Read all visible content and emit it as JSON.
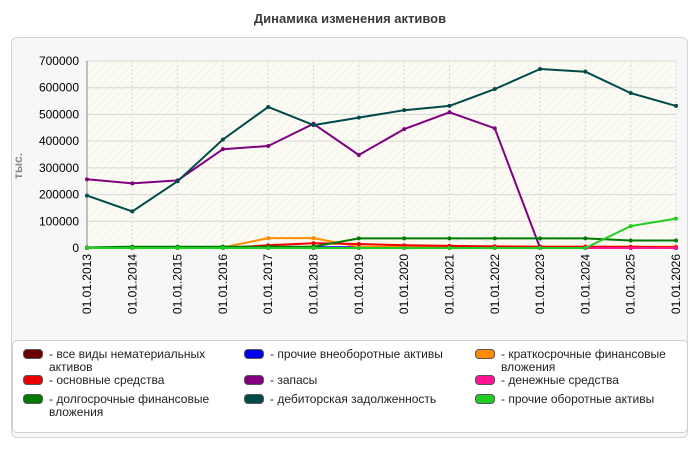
{
  "chart_data": {
    "type": "line",
    "title": "Динамика изменения активов",
    "ylabel": "тыс.",
    "xlabel": "",
    "ylim": [
      0,
      700000
    ],
    "yticks": [
      "0",
      "100000",
      "200000",
      "300000",
      "400000",
      "500000",
      "600000",
      "700000"
    ],
    "categories": [
      "01.01.2013",
      "01.01.2014",
      "01.01.2015",
      "01.01.2016",
      "01.01.2017",
      "01.01.2018",
      "01.01.2019",
      "01.01.2020",
      "01.01.2021",
      "01.01.2022",
      "01.01.2023",
      "01.01.2024",
      "01.01.2025",
      "01.01.2026"
    ],
    "grid": true,
    "legend_position": "bottom",
    "series": [
      {
        "name": "- все виды нематериальных активов",
        "color": "#6b0000",
        "values": [
          0,
          0,
          0,
          0,
          0,
          0,
          0,
          0,
          0,
          0,
          0,
          0,
          0,
          0
        ]
      },
      {
        "name": "- прочие внеоборотные активы",
        "color": "#0000ee",
        "values": [
          0,
          2000,
          3000,
          3000,
          3000,
          3000,
          3000,
          2000,
          2000,
          1000,
          0,
          0,
          0,
          0
        ]
      },
      {
        "name": "- краткосрочные финансовые вложения",
        "color": "#ff8c00",
        "values": [
          0,
          0,
          0,
          2000,
          37000,
          37000,
          5000,
          5000,
          5000,
          5000,
          5000,
          5000,
          5000,
          5000
        ]
      },
      {
        "name": "- основные средства",
        "color": "#ee0000",
        "values": [
          0,
          0,
          0,
          0,
          10000,
          18000,
          15000,
          10000,
          8000,
          6000,
          5000,
          5000,
          4000,
          3000
        ]
      },
      {
        "name": "- запасы",
        "color": "#800080",
        "values": [
          257000,
          242000,
          253000,
          370000,
          382000,
          465000,
          348000,
          445000,
          508000,
          448000,
          0,
          0,
          0,
          0
        ]
      },
      {
        "name": "- денежные средства",
        "color": "#ff1493",
        "values": [
          0,
          0,
          0,
          0,
          0,
          0,
          0,
          0,
          0,
          0,
          0,
          0,
          0,
          0
        ]
      },
      {
        "name": "- долгосрочные финансовые вложения",
        "color": "#007a00",
        "values": [
          2000,
          5000,
          5000,
          5000,
          5000,
          5000,
          36000,
          36000,
          36000,
          36000,
          36000,
          36000,
          28000,
          28000
        ]
      },
      {
        "name": "- дебиторская задолженность",
        "color": "#004a4a",
        "values": [
          196000,
          137000,
          250000,
          406000,
          528000,
          460000,
          488000,
          516000,
          532000,
          595000,
          670000,
          660000,
          580000,
          532000
        ]
      },
      {
        "name": "- прочие оборотные активы",
        "color": "#22cc22",
        "values": [
          0,
          0,
          0,
          0,
          0,
          0,
          0,
          0,
          0,
          0,
          0,
          0,
          82000,
          110000
        ]
      }
    ]
  }
}
